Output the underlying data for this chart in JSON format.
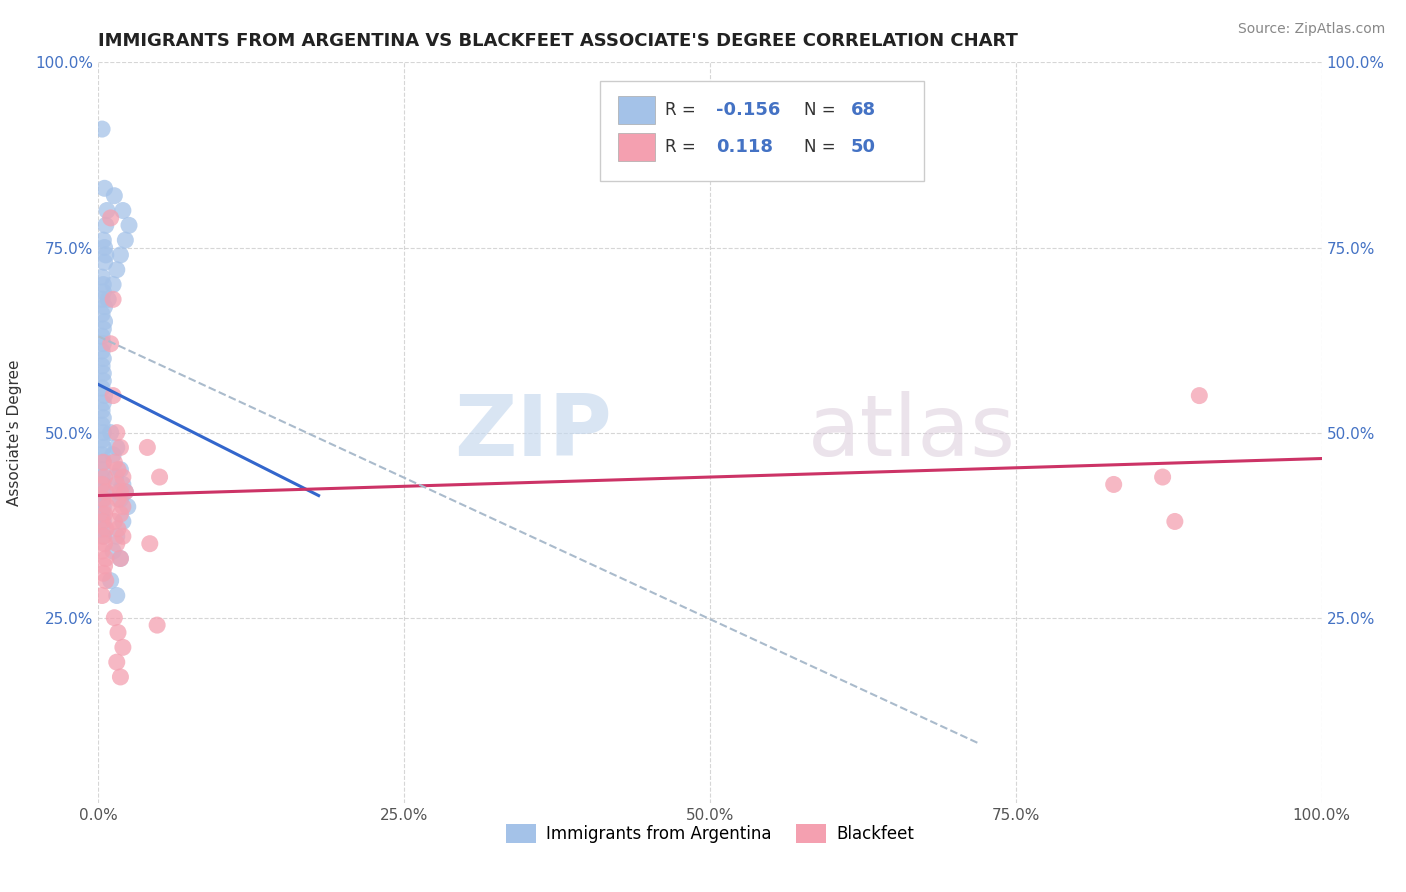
{
  "title": "IMMIGRANTS FROM ARGENTINA VS BLACKFEET ASSOCIATE'S DEGREE CORRELATION CHART",
  "source": "Source: ZipAtlas.com",
  "ylabel": "Associate's Degree",
  "xlim": [
    0.0,
    1.0
  ],
  "ylim": [
    0.0,
    1.0
  ],
  "xtick_labels": [
    "0.0%",
    "25.0%",
    "50.0%",
    "75.0%",
    "100.0%"
  ],
  "xtick_positions": [
    0.0,
    0.25,
    0.5,
    0.75,
    1.0
  ],
  "ytick_labels": [
    "25.0%",
    "50.0%",
    "75.0%",
    "100.0%"
  ],
  "ytick_positions": [
    0.25,
    0.5,
    0.75,
    1.0
  ],
  "blue_color": "#a4c2e8",
  "pink_color": "#f4a0b0",
  "blue_line_color": "#3366cc",
  "pink_line_color": "#cc3366",
  "dashed_line_color": "#aabbcc",
  "watermark_zip": "ZIP",
  "watermark_atlas": "atlas",
  "background_color": "#ffffff",
  "grid_color": "#cccccc",
  "title_color": "#222222",
  "tick_color_blue": "#4472c4",
  "blue_scatter": [
    [
      0.003,
      0.91
    ],
    [
      0.005,
      0.83
    ],
    [
      0.007,
      0.8
    ],
    [
      0.006,
      0.78
    ],
    [
      0.004,
      0.76
    ],
    [
      0.005,
      0.75
    ],
    [
      0.006,
      0.74
    ],
    [
      0.005,
      0.73
    ],
    [
      0.003,
      0.71
    ],
    [
      0.004,
      0.7
    ],
    [
      0.004,
      0.69
    ],
    [
      0.003,
      0.68
    ],
    [
      0.005,
      0.67
    ],
    [
      0.003,
      0.66
    ],
    [
      0.005,
      0.65
    ],
    [
      0.004,
      0.64
    ],
    [
      0.003,
      0.63
    ],
    [
      0.004,
      0.62
    ],
    [
      0.003,
      0.61
    ],
    [
      0.004,
      0.6
    ],
    [
      0.003,
      0.59
    ],
    [
      0.004,
      0.58
    ],
    [
      0.004,
      0.57
    ],
    [
      0.003,
      0.56
    ],
    [
      0.005,
      0.55
    ],
    [
      0.004,
      0.54
    ],
    [
      0.003,
      0.53
    ],
    [
      0.004,
      0.52
    ],
    [
      0.003,
      0.51
    ],
    [
      0.004,
      0.5
    ],
    [
      0.003,
      0.49
    ],
    [
      0.004,
      0.48
    ],
    [
      0.003,
      0.47
    ],
    [
      0.004,
      0.46
    ],
    [
      0.003,
      0.45
    ],
    [
      0.003,
      0.44
    ],
    [
      0.004,
      0.43
    ],
    [
      0.003,
      0.42
    ],
    [
      0.003,
      0.41
    ],
    [
      0.004,
      0.4
    ],
    [
      0.003,
      0.39
    ],
    [
      0.004,
      0.38
    ],
    [
      0.003,
      0.37
    ],
    [
      0.004,
      0.36
    ],
    [
      0.013,
      0.82
    ],
    [
      0.02,
      0.8
    ],
    [
      0.025,
      0.78
    ],
    [
      0.022,
      0.76
    ],
    [
      0.018,
      0.74
    ],
    [
      0.015,
      0.72
    ],
    [
      0.012,
      0.7
    ],
    [
      0.008,
      0.68
    ],
    [
      0.01,
      0.5
    ],
    [
      0.015,
      0.48
    ],
    [
      0.012,
      0.47
    ],
    [
      0.018,
      0.45
    ],
    [
      0.014,
      0.44
    ],
    [
      0.02,
      0.43
    ],
    [
      0.016,
      0.42
    ],
    [
      0.022,
      0.42
    ],
    [
      0.018,
      0.41
    ],
    [
      0.024,
      0.4
    ],
    [
      0.02,
      0.38
    ],
    [
      0.015,
      0.36
    ],
    [
      0.012,
      0.34
    ],
    [
      0.018,
      0.33
    ],
    [
      0.01,
      0.3
    ],
    [
      0.015,
      0.28
    ]
  ],
  "pink_scatter": [
    [
      0.004,
      0.46
    ],
    [
      0.005,
      0.44
    ],
    [
      0.003,
      0.43
    ],
    [
      0.006,
      0.42
    ],
    [
      0.004,
      0.41
    ],
    [
      0.007,
      0.4
    ],
    [
      0.005,
      0.39
    ],
    [
      0.003,
      0.38
    ],
    [
      0.006,
      0.37
    ],
    [
      0.004,
      0.36
    ],
    [
      0.005,
      0.35
    ],
    [
      0.003,
      0.34
    ],
    [
      0.006,
      0.33
    ],
    [
      0.005,
      0.32
    ],
    [
      0.004,
      0.31
    ],
    [
      0.006,
      0.3
    ],
    [
      0.003,
      0.28
    ],
    [
      0.01,
      0.79
    ],
    [
      0.012,
      0.68
    ],
    [
      0.01,
      0.62
    ],
    [
      0.012,
      0.55
    ],
    [
      0.015,
      0.5
    ],
    [
      0.018,
      0.48
    ],
    [
      0.013,
      0.46
    ],
    [
      0.016,
      0.45
    ],
    [
      0.02,
      0.44
    ],
    [
      0.015,
      0.43
    ],
    [
      0.018,
      0.42
    ],
    [
      0.022,
      0.42
    ],
    [
      0.016,
      0.41
    ],
    [
      0.02,
      0.4
    ],
    [
      0.018,
      0.39
    ],
    [
      0.013,
      0.38
    ],
    [
      0.016,
      0.37
    ],
    [
      0.02,
      0.36
    ],
    [
      0.015,
      0.35
    ],
    [
      0.018,
      0.33
    ],
    [
      0.013,
      0.25
    ],
    [
      0.016,
      0.23
    ],
    [
      0.02,
      0.21
    ],
    [
      0.015,
      0.19
    ],
    [
      0.018,
      0.17
    ],
    [
      0.04,
      0.48
    ],
    [
      0.05,
      0.44
    ],
    [
      0.042,
      0.35
    ],
    [
      0.048,
      0.24
    ],
    [
      0.9,
      0.55
    ],
    [
      0.87,
      0.44
    ],
    [
      0.83,
      0.43
    ],
    [
      0.88,
      0.38
    ]
  ],
  "blue_trend_x": [
    0.0,
    0.18
  ],
  "blue_trend_y": [
    0.565,
    0.415
  ],
  "pink_trend_x": [
    0.0,
    1.0
  ],
  "pink_trend_y": [
    0.415,
    0.465
  ],
  "dashed_trend_x": [
    0.0,
    0.72
  ],
  "dashed_trend_y": [
    0.63,
    0.08
  ]
}
